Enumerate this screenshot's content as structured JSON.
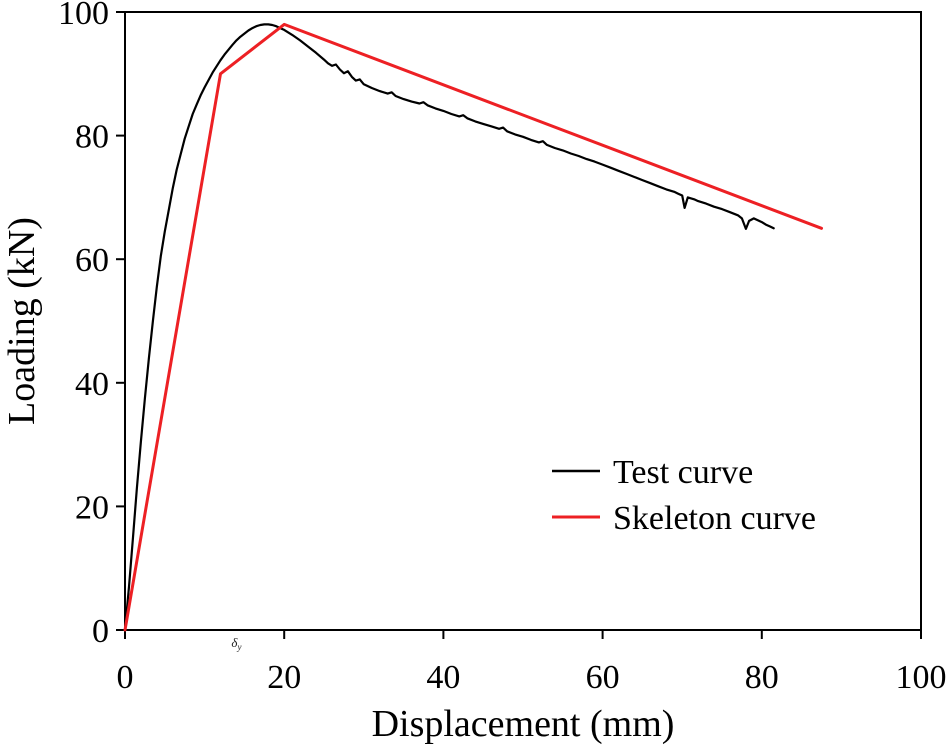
{
  "chart_data": {
    "type": "line",
    "title": "",
    "xlabel": "Displacement (mm)",
    "ylabel": "Loading (kN)",
    "xlim": [
      0,
      100
    ],
    "ylim": [
      0,
      100
    ],
    "xticks": [
      0,
      20,
      40,
      60,
      80,
      100
    ],
    "yticks": [
      0,
      20,
      40,
      60,
      80,
      100
    ],
    "grid": false,
    "legend_position": "center-right",
    "annotations": [
      {
        "text": "δ",
        "sub": "y",
        "x": 14,
        "placement": "below-x-axis"
      }
    ],
    "series": [
      {
        "name": "Test curve",
        "color": "#000000",
        "width": 2.2,
        "points": [
          [
            0,
            0
          ],
          [
            0.5,
            7
          ],
          [
            1,
            15
          ],
          [
            1.5,
            23
          ],
          [
            2,
            30.5
          ],
          [
            2.5,
            37.5
          ],
          [
            3,
            44
          ],
          [
            3.5,
            50
          ],
          [
            4,
            55.5
          ],
          [
            4.5,
            60.5
          ],
          [
            5,
            64.5
          ],
          [
            5.5,
            68
          ],
          [
            6,
            71.5
          ],
          [
            6.5,
            74.5
          ],
          [
            7,
            77
          ],
          [
            7.5,
            79.5
          ],
          [
            8,
            81.5
          ],
          [
            8.5,
            83.5
          ],
          [
            9,
            85
          ],
          [
            9.5,
            86.5
          ],
          [
            10,
            87.8
          ],
          [
            10.5,
            89
          ],
          [
            11,
            90.2
          ],
          [
            11.5,
            91.2
          ],
          [
            12,
            92.2
          ],
          [
            12.5,
            93.1
          ],
          [
            13,
            93.9
          ],
          [
            13.5,
            94.7
          ],
          [
            14,
            95.4
          ],
          [
            14.5,
            96
          ],
          [
            15,
            96.5
          ],
          [
            15.5,
            97
          ],
          [
            16,
            97.4
          ],
          [
            16.5,
            97.7
          ],
          [
            17,
            97.9
          ],
          [
            17.5,
            98
          ],
          [
            18,
            98
          ],
          [
            18.5,
            97.9
          ],
          [
            19,
            97.7
          ],
          [
            19.5,
            97.4
          ],
          [
            20,
            97.1
          ],
          [
            20.5,
            96.7
          ],
          [
            21,
            96.3
          ],
          [
            22,
            95.4
          ],
          [
            23,
            94.4
          ],
          [
            24,
            93.4
          ],
          [
            25,
            92.3
          ],
          [
            25.5,
            91.7
          ],
          [
            26,
            91.3
          ],
          [
            26.5,
            91.5
          ],
          [
            27,
            90.7
          ],
          [
            27.5,
            90.1
          ],
          [
            28,
            90.4
          ],
          [
            28.5,
            89.5
          ],
          [
            29,
            88.9
          ],
          [
            29.5,
            89.1
          ],
          [
            30,
            88.3
          ],
          [
            31,
            87.7
          ],
          [
            32,
            87.2
          ],
          [
            33,
            86.8
          ],
          [
            33.5,
            87
          ],
          [
            34,
            86.4
          ],
          [
            35,
            85.9
          ],
          [
            36,
            85.5
          ],
          [
            37,
            85.2
          ],
          [
            37.5,
            85.4
          ],
          [
            38,
            84.9
          ],
          [
            39,
            84.4
          ],
          [
            40,
            84
          ],
          [
            41,
            83.5
          ],
          [
            42,
            83.1
          ],
          [
            42.5,
            83.3
          ],
          [
            43,
            82.8
          ],
          [
            44,
            82.3
          ],
          [
            45,
            81.9
          ],
          [
            46,
            81.5
          ],
          [
            47,
            81.1
          ],
          [
            47.5,
            81.3
          ],
          [
            48,
            80.7
          ],
          [
            49,
            80.2
          ],
          [
            50,
            79.8
          ],
          [
            51,
            79.3
          ],
          [
            52,
            78.9
          ],
          [
            52.5,
            79.1
          ],
          [
            53,
            78.5
          ],
          [
            54,
            78
          ],
          [
            55,
            77.6
          ],
          [
            56,
            77.1
          ],
          [
            57,
            76.7
          ],
          [
            58,
            76.2
          ],
          [
            59,
            75.8
          ],
          [
            60,
            75.3
          ],
          [
            61,
            74.8
          ],
          [
            62,
            74.3
          ],
          [
            63,
            73.8
          ],
          [
            64,
            73.3
          ],
          [
            65,
            72.8
          ],
          [
            66,
            72.3
          ],
          [
            67,
            71.8
          ],
          [
            68,
            71.3
          ],
          [
            69,
            70.9
          ],
          [
            69.5,
            70.6
          ],
          [
            70,
            70.3
          ],
          [
            70.3,
            68.3
          ],
          [
            70.7,
            70
          ],
          [
            71.5,
            69.7
          ],
          [
            72,
            69.4
          ],
          [
            73,
            69
          ],
          [
            74,
            68.5
          ],
          [
            75,
            68.1
          ],
          [
            76,
            67.6
          ],
          [
            77,
            67.1
          ],
          [
            77.5,
            66.6
          ],
          [
            78,
            64.9
          ],
          [
            78.4,
            66.2
          ],
          [
            79,
            66.6
          ],
          [
            79.5,
            66.3
          ],
          [
            80,
            66
          ],
          [
            80.5,
            65.6
          ],
          [
            81,
            65.3
          ],
          [
            81.5,
            65
          ]
        ]
      },
      {
        "name": "Skeleton curve",
        "color": "#ed2024",
        "width": 3,
        "points": [
          [
            0,
            0
          ],
          [
            12,
            90
          ],
          [
            20,
            98
          ],
          [
            87.5,
            65
          ]
        ]
      }
    ]
  }
}
